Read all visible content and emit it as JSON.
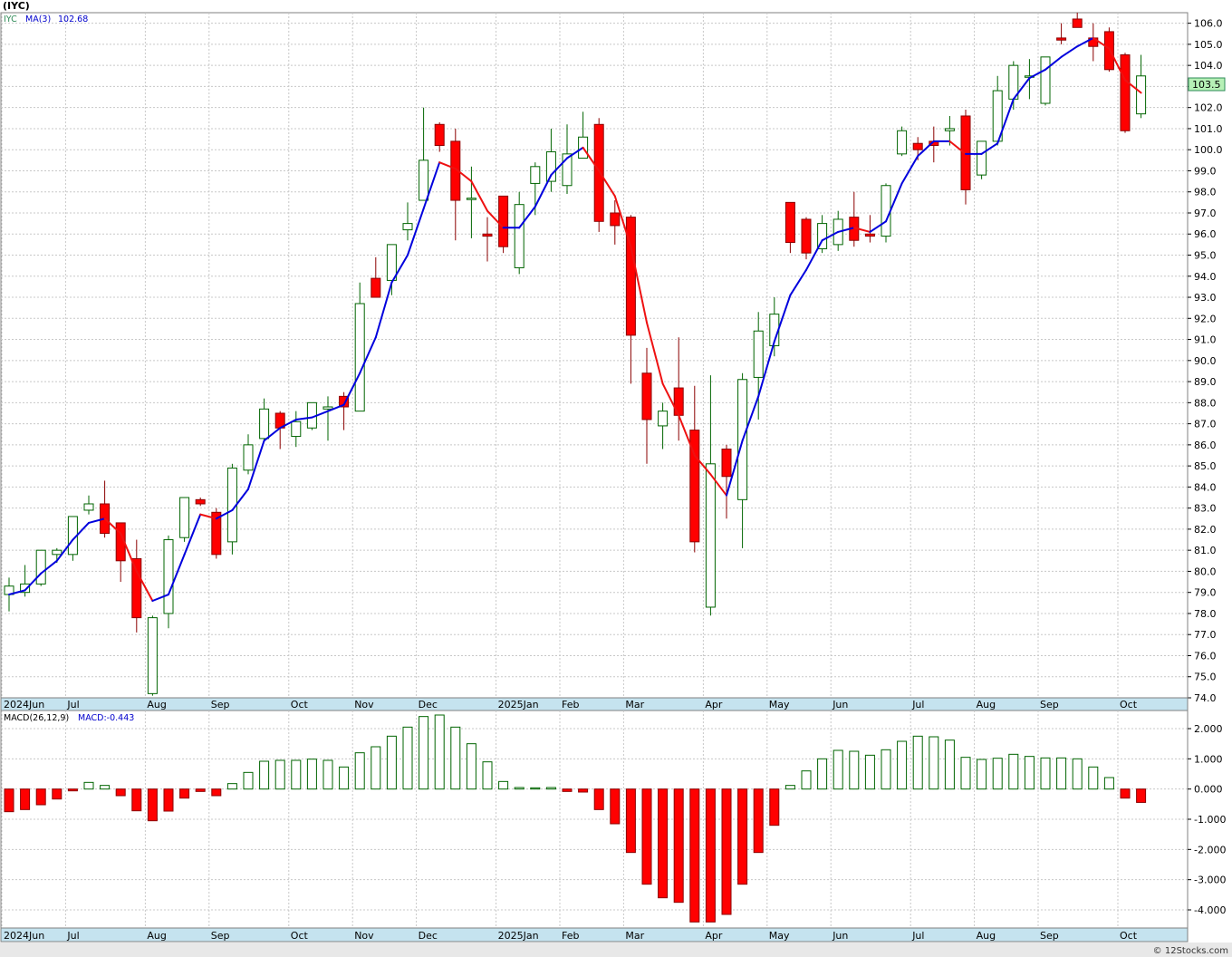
{
  "chart_data": [
    {
      "type": "candlestick",
      "title": "(IYC)",
      "symbol_label": "IYC",
      "ma_label": "MA(3)",
      "ma_value": "102.68",
      "current_price_label": "103.5",
      "ylim": [
        74,
        106.5
      ],
      "yticks": [
        "74.0",
        "75.0",
        "76.0",
        "77.0",
        "78.0",
        "79.0",
        "80.0",
        "81.0",
        "82.0",
        "83.0",
        "84.0",
        "85.0",
        "86.0",
        "87.0",
        "88.0",
        "89.0",
        "90.0",
        "91.0",
        "92.0",
        "93.0",
        "94.0",
        "95.0",
        "96.0",
        "97.0",
        "98.0",
        "99.0",
        "100.0",
        "101.0",
        "102.0",
        "103.0",
        "104.0",
        "105.0",
        "106.0"
      ],
      "xticks": [
        {
          "label": "2024Jun",
          "i": 0
        },
        {
          "label": "Jul",
          "i": 4
        },
        {
          "label": "Aug",
          "i": 9
        },
        {
          "label": "Sep",
          "i": 13
        },
        {
          "label": "Oct",
          "i": 18
        },
        {
          "label": "Nov",
          "i": 22
        },
        {
          "label": "Dec",
          "i": 26
        },
        {
          "label": "2025Jan",
          "i": 31
        },
        {
          "label": "Feb",
          "i": 35
        },
        {
          "label": "Mar",
          "i": 39
        },
        {
          "label": "Apr",
          "i": 44
        },
        {
          "label": "May",
          "i": 48
        },
        {
          "label": "Jun",
          "i": 52
        },
        {
          "label": "Jul",
          "i": 57
        },
        {
          "label": "Aug",
          "i": 61
        },
        {
          "label": "Sep",
          "i": 65
        },
        {
          "label": "Oct",
          "i": 70
        }
      ],
      "ohlc": [
        [
          78.9,
          79.7,
          78.1,
          79.3
        ],
        [
          79.0,
          80.3,
          78.8,
          79.4
        ],
        [
          79.4,
          81.0,
          79.3,
          81.0
        ],
        [
          80.8,
          81.1,
          80.4,
          81.0
        ],
        [
          80.8,
          82.6,
          80.5,
          82.6
        ],
        [
          82.9,
          83.6,
          82.7,
          83.2
        ],
        [
          83.2,
          84.3,
          81.6,
          81.8
        ],
        [
          82.3,
          82.3,
          79.5,
          80.5
        ],
        [
          80.6,
          81.5,
          77.1,
          77.8
        ],
        [
          74.2,
          77.9,
          74.1,
          77.8
        ],
        [
          78.0,
          81.7,
          77.3,
          81.5
        ],
        [
          81.6,
          83.5,
          81.4,
          83.5
        ],
        [
          83.4,
          83.5,
          83.1,
          83.2
        ],
        [
          82.8,
          83.0,
          80.6,
          80.8
        ],
        [
          81.4,
          85.1,
          80.8,
          84.9
        ],
        [
          84.8,
          86.5,
          84.6,
          86.0
        ],
        [
          86.3,
          88.2,
          86.2,
          87.7
        ],
        [
          87.5,
          87.6,
          85.8,
          86.8
        ],
        [
          86.4,
          87.6,
          85.9,
          87.1
        ],
        [
          86.8,
          88.0,
          86.7,
          88.0
        ],
        [
          87.7,
          88.3,
          86.2,
          87.8
        ],
        [
          88.3,
          88.5,
          86.7,
          87.8
        ],
        [
          87.6,
          93.7,
          87.6,
          92.7
        ],
        [
          93.9,
          94.9,
          93.1,
          93.0
        ],
        [
          93.8,
          95.5,
          93.1,
          95.5
        ],
        [
          96.2,
          97.5,
          95.7,
          96.5
        ],
        [
          97.6,
          102.0,
          97.6,
          99.5
        ],
        [
          101.2,
          101.3,
          99.9,
          100.2
        ],
        [
          100.4,
          101.0,
          95.7,
          97.6
        ],
        [
          97.7,
          99.2,
          95.8,
          97.7
        ],
        [
          96.0,
          96.8,
          94.7,
          95.9
        ],
        [
          97.8,
          97.8,
          95.1,
          95.4
        ],
        [
          94.4,
          98.0,
          94.1,
          97.4
        ],
        [
          98.4,
          99.4,
          96.9,
          99.2
        ],
        [
          98.5,
          101.0,
          98.0,
          99.9
        ],
        [
          98.3,
          101.2,
          97.9,
          99.8
        ],
        [
          99.6,
          101.8,
          99.6,
          100.6
        ],
        [
          101.2,
          101.5,
          96.1,
          96.6
        ],
        [
          97.0,
          97.6,
          95.5,
          96.4
        ],
        [
          96.8,
          96.9,
          88.9,
          91.2
        ],
        [
          89.4,
          90.6,
          85.1,
          87.2
        ],
        [
          86.9,
          88.0,
          85.8,
          87.6
        ],
        [
          88.7,
          91.1,
          86.2,
          87.4
        ],
        [
          86.7,
          88.8,
          80.9,
          81.4
        ],
        [
          78.3,
          89.3,
          77.9,
          85.1
        ],
        [
          85.8,
          86.0,
          82.5,
          84.5
        ],
        [
          83.4,
          89.4,
          81.1,
          89.1
        ],
        [
          89.2,
          92.3,
          87.2,
          91.4
        ],
        [
          90.7,
          93.0,
          90.2,
          92.2
        ],
        [
          97.5,
          97.5,
          95.1,
          95.6
        ],
        [
          96.7,
          96.8,
          94.8,
          95.1
        ],
        [
          95.3,
          96.9,
          95.1,
          96.5
        ],
        [
          95.5,
          97.1,
          95.2,
          96.7
        ],
        [
          96.8,
          98.0,
          95.4,
          95.7
        ],
        [
          96.0,
          96.9,
          95.6,
          95.9
        ],
        [
          95.9,
          98.4,
          95.6,
          98.3
        ],
        [
          99.8,
          101.1,
          99.7,
          100.9
        ],
        [
          100.3,
          100.6,
          99.5,
          100.0
        ],
        [
          100.4,
          101.1,
          99.4,
          100.2
        ],
        [
          100.9,
          101.6,
          100.2,
          101.0
        ],
        [
          101.6,
          101.9,
          97.4,
          98.1
        ],
        [
          98.8,
          100.4,
          98.6,
          100.4
        ],
        [
          100.4,
          103.5,
          100.2,
          102.8
        ],
        [
          102.4,
          104.2,
          101.9,
          104.0
        ],
        [
          103.5,
          104.3,
          102.4,
          103.5
        ],
        [
          102.2,
          104.3,
          102.1,
          104.4
        ],
        [
          105.3,
          106.0,
          105.0,
          105.2
        ],
        [
          106.2,
          106.5,
          105.8,
          105.8
        ],
        [
          105.3,
          106.0,
          104.2,
          104.9
        ],
        [
          105.6,
          105.8,
          103.7,
          103.8
        ],
        [
          104.5,
          104.6,
          100.8,
          100.9
        ],
        [
          101.7,
          104.5,
          101.5,
          103.5
        ]
      ],
      "ma3": [
        78.9,
        79.1,
        79.9,
        80.5,
        81.5,
        82.3,
        82.5,
        81.8,
        80.0,
        78.6,
        78.9,
        80.8,
        82.7,
        82.5,
        82.9,
        83.9,
        86.2,
        86.8,
        87.2,
        87.3,
        87.6,
        87.9,
        89.4,
        91.1,
        93.7,
        95.0,
        97.2,
        99.4,
        99.1,
        98.5,
        97.1,
        96.3,
        96.3,
        97.3,
        98.8,
        99.6,
        100.1,
        99.0,
        97.8,
        95.4,
        91.8,
        88.9,
        87.4,
        85.5,
        84.6,
        83.6,
        86.2,
        88.3,
        90.9,
        93.1,
        94.3,
        95.7,
        96.1,
        96.3,
        96.1,
        96.6,
        98.4,
        99.7,
        100.4,
        100.4,
        99.8,
        99.8,
        100.3,
        102.4,
        103.4,
        103.8,
        104.4,
        104.9,
        105.3,
        104.8,
        103.3,
        102.7
      ]
    },
    {
      "type": "bar",
      "title": "MACD(26,12,9)",
      "value_label": "MACD:-0.443",
      "ylim": [
        -4.6,
        2.6
      ],
      "yticks": [
        "-4.000",
        "-3.000",
        "-2.000",
        "-1.000",
        "0.000",
        "1.000",
        "2.000"
      ],
      "values": [
        -0.75,
        -0.68,
        -0.52,
        -0.33,
        -0.06,
        0.22,
        0.12,
        -0.22,
        -0.72,
        -1.05,
        -0.73,
        -0.3,
        -0.08,
        -0.22,
        0.18,
        0.55,
        0.92,
        0.95,
        0.95,
        0.99,
        0.95,
        0.73,
        1.2,
        1.4,
        1.75,
        2.05,
        2.4,
        2.45,
        2.05,
        1.5,
        0.9,
        0.25,
        0.05,
        0.04,
        0.05,
        -0.08,
        -0.1,
        -0.68,
        -1.15,
        -2.1,
        -3.15,
        -3.6,
        -3.75,
        -4.4,
        -4.4,
        -4.15,
        -3.15,
        -2.1,
        -1.2,
        0.12,
        0.6,
        1.0,
        1.28,
        1.25,
        1.12,
        1.3,
        1.58,
        1.75,
        1.73,
        1.62,
        1.05,
        0.98,
        1.02,
        1.15,
        1.08,
        1.03,
        1.03,
        1.0,
        0.73,
        0.38,
        -0.3,
        -0.443
      ]
    }
  ],
  "footer": {
    "copyright": "© 12Stocks.com"
  }
}
